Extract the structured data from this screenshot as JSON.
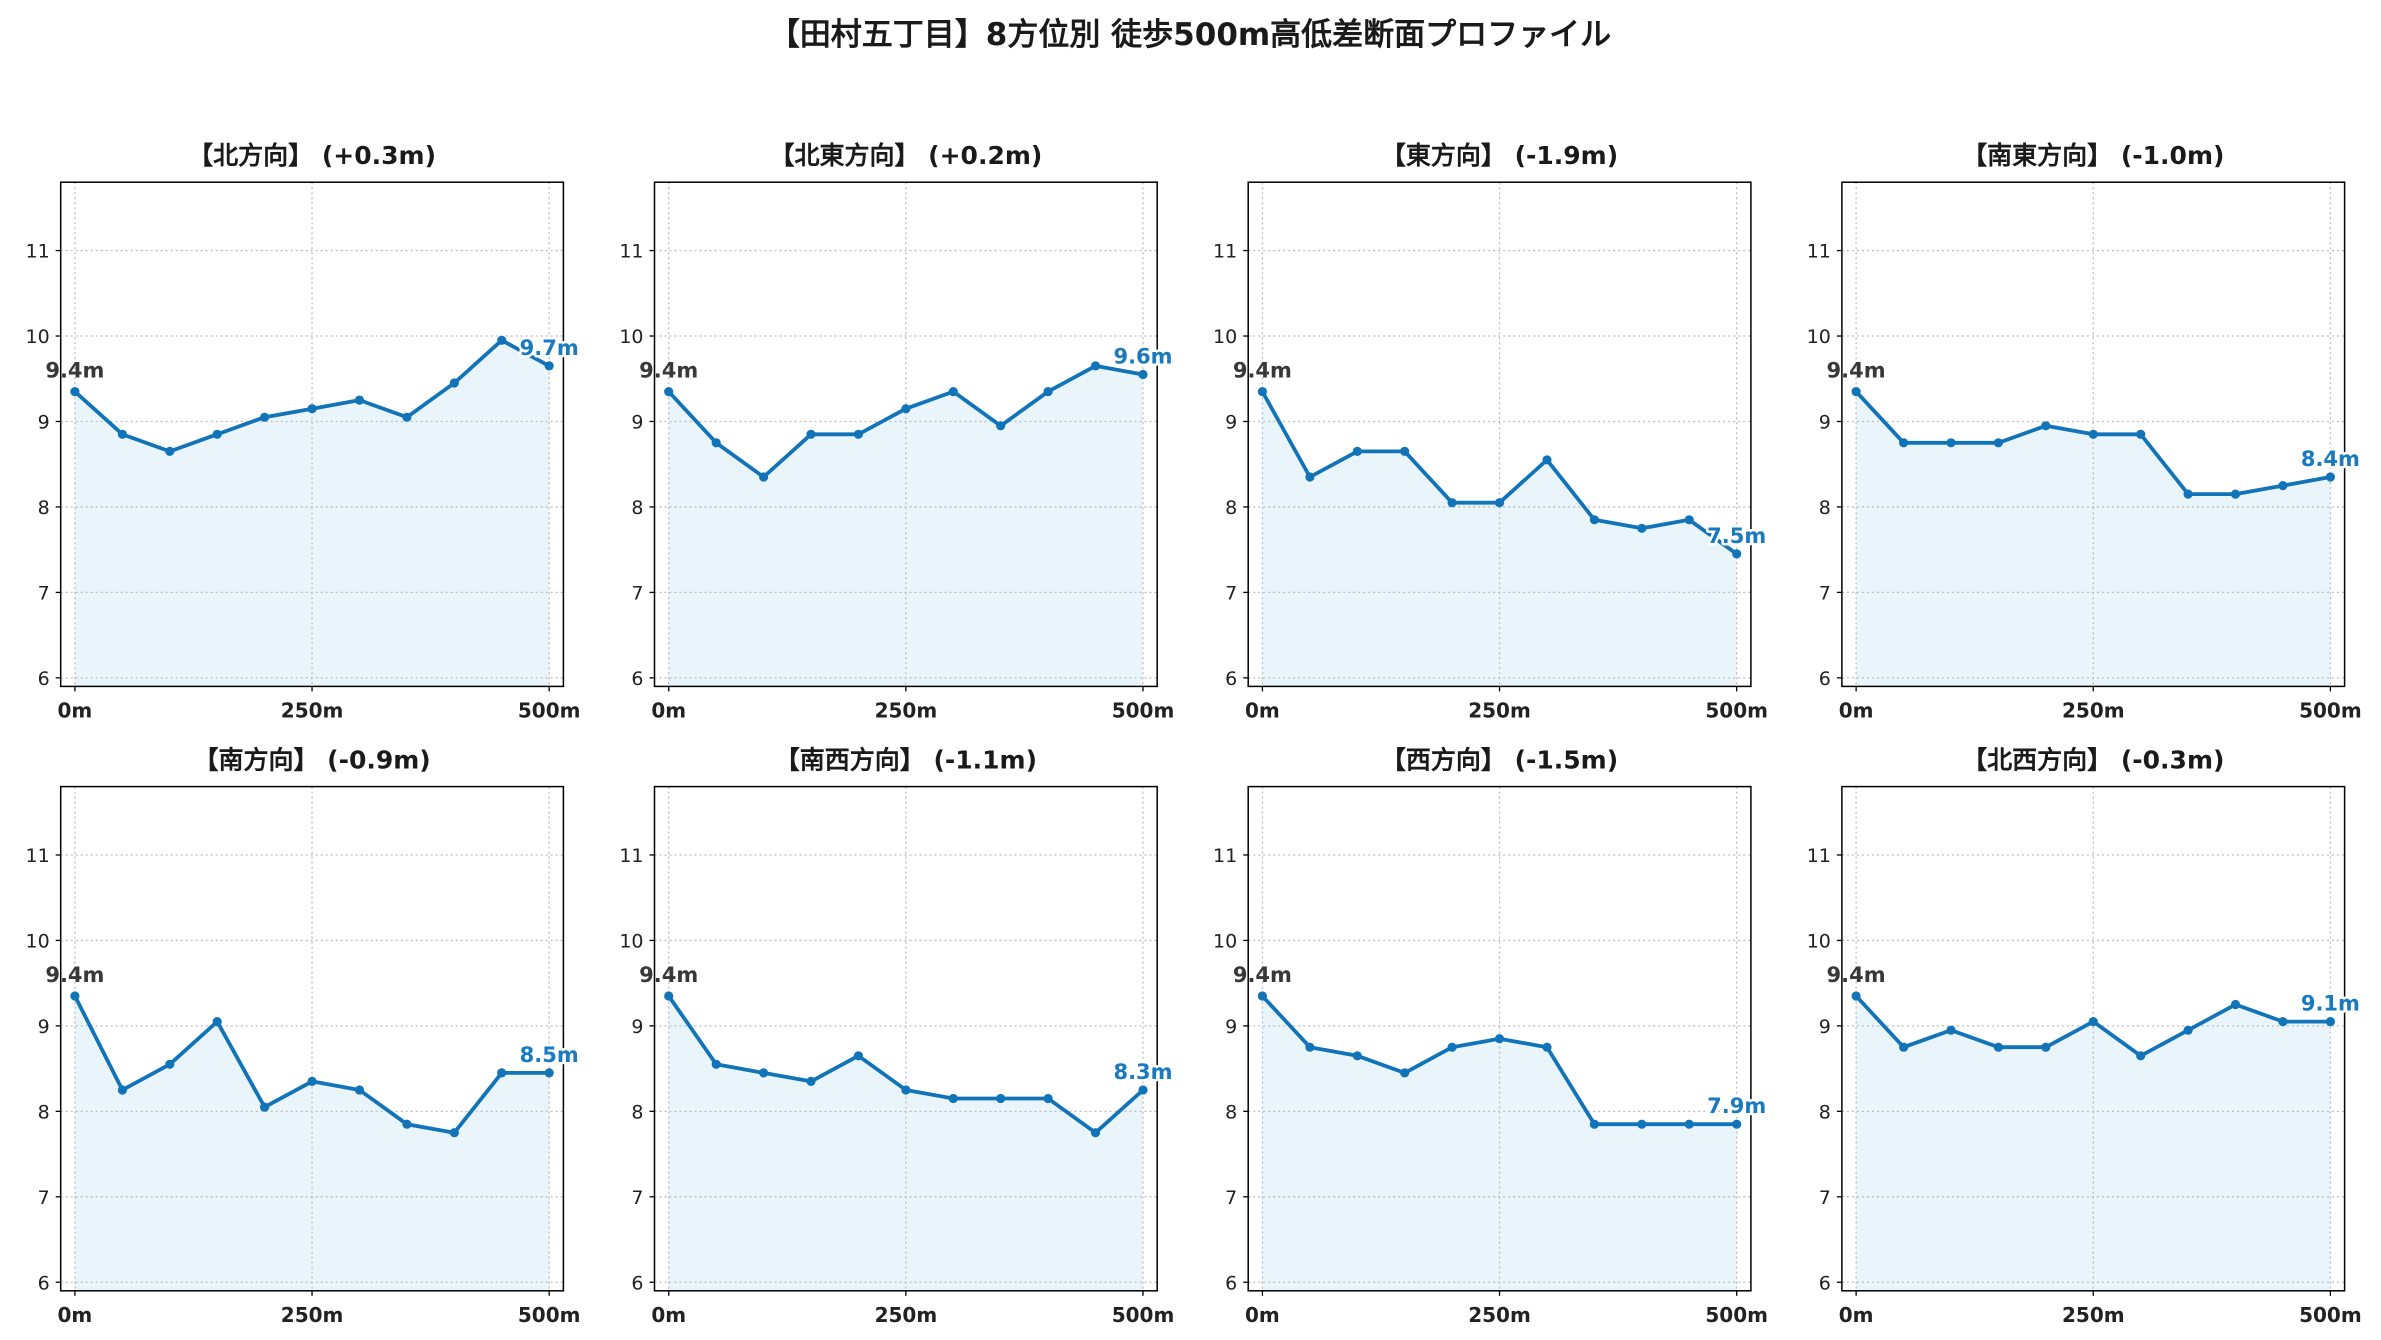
{
  "figure": {
    "title": "【田村五丁目】8方位別 徒歩500m高低差断面プロファイル"
  },
  "colors": {
    "line": "#1274b8",
    "fill": "#e9f5fb",
    "start_label": "#383838",
    "end_label": "#1a7abf",
    "grid": "#bdbdbd"
  },
  "chart_data": [
    {
      "type": "line",
      "title": "【北方向】 (+0.3m)",
      "x": [
        0,
        50,
        100,
        150,
        200,
        250,
        300,
        350,
        400,
        450,
        500
      ],
      "y": [
        9.35,
        8.85,
        8.65,
        8.85,
        9.05,
        9.15,
        9.25,
        9.05,
        9.45,
        9.95,
        9.65
      ],
      "xticks": [
        0,
        250,
        500
      ],
      "xtick_labels": [
        "0m",
        "250m",
        "500m"
      ],
      "yticks": [
        6,
        7,
        8,
        9,
        10,
        11
      ],
      "xlim": [
        -15,
        515
      ],
      "ylim": [
        5.9,
        11.8
      ],
      "grid": true,
      "fill": true,
      "start_label": "9.4m",
      "end_label": "9.7m"
    },
    {
      "type": "line",
      "title": "【北東方向】 (+0.2m)",
      "x": [
        0,
        50,
        100,
        150,
        200,
        250,
        300,
        350,
        400,
        450,
        500
      ],
      "y": [
        9.35,
        8.75,
        8.35,
        8.85,
        8.85,
        9.15,
        9.35,
        8.95,
        9.35,
        9.65,
        9.55
      ],
      "xticks": [
        0,
        250,
        500
      ],
      "xtick_labels": [
        "0m",
        "250m",
        "500m"
      ],
      "yticks": [
        6,
        7,
        8,
        9,
        10,
        11
      ],
      "xlim": [
        -15,
        515
      ],
      "ylim": [
        5.9,
        11.8
      ],
      "grid": true,
      "fill": true,
      "start_label": "9.4m",
      "end_label": "9.6m"
    },
    {
      "type": "line",
      "title": "【東方向】 (-1.9m)",
      "x": [
        0,
        50,
        100,
        150,
        200,
        250,
        300,
        350,
        400,
        450,
        500
      ],
      "y": [
        9.35,
        8.35,
        8.65,
        8.65,
        8.05,
        8.05,
        8.55,
        7.85,
        7.75,
        7.85,
        7.45
      ],
      "xticks": [
        0,
        250,
        500
      ],
      "xtick_labels": [
        "0m",
        "250m",
        "500m"
      ],
      "yticks": [
        6,
        7,
        8,
        9,
        10,
        11
      ],
      "xlim": [
        -15,
        515
      ],
      "ylim": [
        5.9,
        11.8
      ],
      "grid": true,
      "fill": true,
      "start_label": "9.4m",
      "end_label": "7.5m"
    },
    {
      "type": "line",
      "title": "【南東方向】 (-1.0m)",
      "x": [
        0,
        50,
        100,
        150,
        200,
        250,
        300,
        350,
        400,
        450,
        500
      ],
      "y": [
        9.35,
        8.75,
        8.75,
        8.75,
        8.95,
        8.85,
        8.85,
        8.15,
        8.15,
        8.25,
        8.35
      ],
      "xticks": [
        0,
        250,
        500
      ],
      "xtick_labels": [
        "0m",
        "250m",
        "500m"
      ],
      "yticks": [
        6,
        7,
        8,
        9,
        10,
        11
      ],
      "xlim": [
        -15,
        515
      ],
      "ylim": [
        5.9,
        11.8
      ],
      "grid": true,
      "fill": true,
      "start_label": "9.4m",
      "end_label": "8.4m"
    },
    {
      "type": "line",
      "title": "【南方向】 (-0.9m)",
      "x": [
        0,
        50,
        100,
        150,
        200,
        250,
        300,
        350,
        400,
        450,
        500
      ],
      "y": [
        9.35,
        8.25,
        8.55,
        9.05,
        8.05,
        8.35,
        8.25,
        7.85,
        7.75,
        8.45,
        8.45
      ],
      "xticks": [
        0,
        250,
        500
      ],
      "xtick_labels": [
        "0m",
        "250m",
        "500m"
      ],
      "yticks": [
        6,
        7,
        8,
        9,
        10,
        11
      ],
      "xlim": [
        -15,
        515
      ],
      "ylim": [
        5.9,
        11.8
      ],
      "grid": true,
      "fill": true,
      "start_label": "9.4m",
      "end_label": "8.5m"
    },
    {
      "type": "line",
      "title": "【南西方向】 (-1.1m)",
      "x": [
        0,
        50,
        100,
        150,
        200,
        250,
        300,
        350,
        400,
        450,
        500
      ],
      "y": [
        9.35,
        8.55,
        8.45,
        8.35,
        8.65,
        8.25,
        8.15,
        8.15,
        8.15,
        7.75,
        8.25
      ],
      "xticks": [
        0,
        250,
        500
      ],
      "xtick_labels": [
        "0m",
        "250m",
        "500m"
      ],
      "yticks": [
        6,
        7,
        8,
        9,
        10,
        11
      ],
      "xlim": [
        -15,
        515
      ],
      "ylim": [
        5.9,
        11.8
      ],
      "grid": true,
      "fill": true,
      "start_label": "9.4m",
      "end_label": "8.3m"
    },
    {
      "type": "line",
      "title": "【西方向】 (-1.5m)",
      "x": [
        0,
        50,
        100,
        150,
        200,
        250,
        300,
        350,
        400,
        450,
        500
      ],
      "y": [
        9.35,
        8.75,
        8.65,
        8.45,
        8.75,
        8.85,
        8.75,
        7.85,
        7.85,
        7.85,
        7.85
      ],
      "xticks": [
        0,
        250,
        500
      ],
      "xtick_labels": [
        "0m",
        "250m",
        "500m"
      ],
      "yticks": [
        6,
        7,
        8,
        9,
        10,
        11
      ],
      "xlim": [
        -15,
        515
      ],
      "ylim": [
        5.9,
        11.8
      ],
      "grid": true,
      "fill": true,
      "start_label": "9.4m",
      "end_label": "7.9m"
    },
    {
      "type": "line",
      "title": "【北西方向】 (-0.3m)",
      "x": [
        0,
        50,
        100,
        150,
        200,
        250,
        300,
        350,
        400,
        450,
        500
      ],
      "y": [
        9.35,
        8.75,
        8.95,
        8.75,
        8.75,
        9.05,
        8.65,
        8.95,
        9.25,
        9.05,
        9.05
      ],
      "xticks": [
        0,
        250,
        500
      ],
      "xtick_labels": [
        "0m",
        "250m",
        "500m"
      ],
      "yticks": [
        6,
        7,
        8,
        9,
        10,
        11
      ],
      "xlim": [
        -15,
        515
      ],
      "ylim": [
        5.9,
        11.8
      ],
      "grid": true,
      "fill": true,
      "start_label": "9.4m",
      "end_label": "9.1m"
    }
  ]
}
